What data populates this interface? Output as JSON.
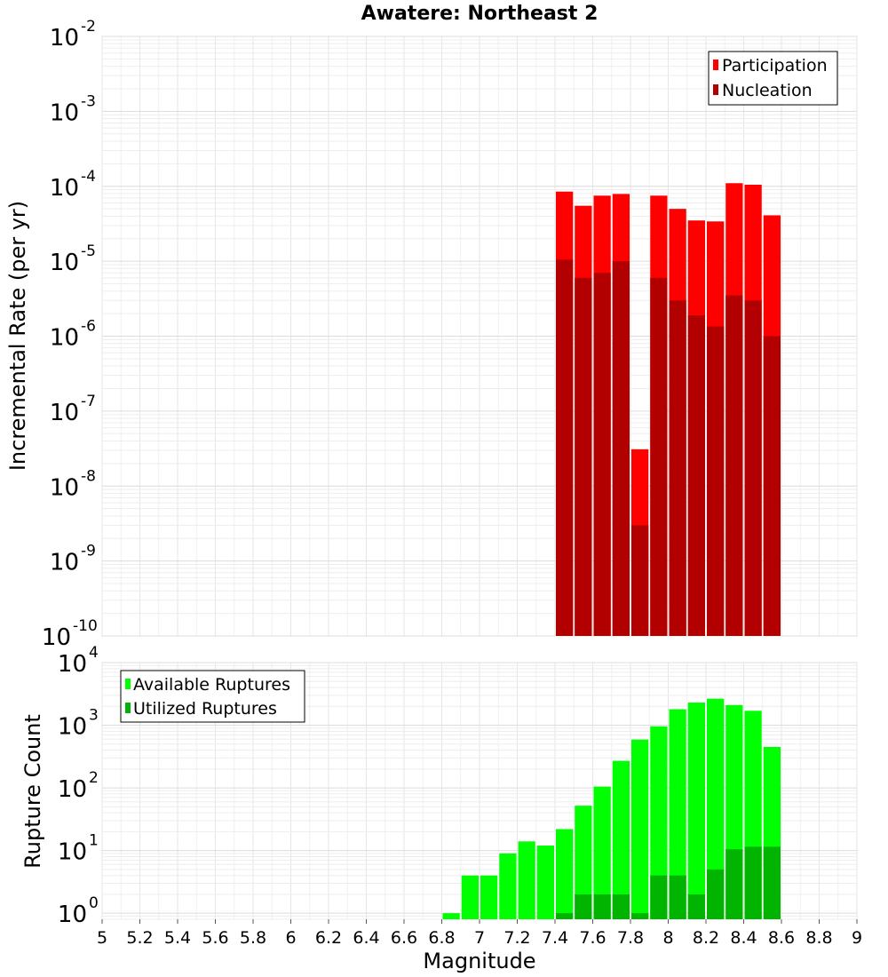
{
  "chart_data": [
    {
      "type": "bar",
      "title": "Awatere: Northeast 2",
      "xlabel": "",
      "ylabel": "Incremental Rate (per yr)",
      "yscale": "log",
      "ylim": [
        1e-10,
        0.01
      ],
      "xlim": [
        5,
        9
      ],
      "y_ticks": [
        {
          "base": "10",
          "exp": "-10"
        },
        {
          "base": "10",
          "exp": "-9"
        },
        {
          "base": "10",
          "exp": "-8"
        },
        {
          "base": "10",
          "exp": "-7"
        },
        {
          "base": "10",
          "exp": "-6"
        },
        {
          "base": "10",
          "exp": "-5"
        },
        {
          "base": "10",
          "exp": "-4"
        },
        {
          "base": "10",
          "exp": "-3"
        },
        {
          "base": "10",
          "exp": "-2"
        }
      ],
      "legend_position": "top-right",
      "x": [
        7.45,
        7.55,
        7.65,
        7.75,
        7.85,
        7.95,
        8.05,
        8.15,
        8.25,
        8.35,
        8.45,
        8.55
      ],
      "series": [
        {
          "name": "Participation",
          "color": "#ff0000",
          "values": [
            8.5e-05,
            5.5e-05,
            7.5e-05,
            7.9e-05,
            3.1e-08,
            7.5e-05,
            5e-05,
            3.5e-05,
            3.4e-05,
            0.00011,
            0.000105,
            4.1e-05
          ]
        },
        {
          "name": "Nucleation",
          "color": "#b20000",
          "values": [
            1.05e-05,
            6e-06,
            7e-06,
            1e-05,
            3e-09,
            6e-06,
            3e-06,
            1.9e-06,
            1.35e-06,
            3.5e-06,
            3e-06,
            1e-06
          ]
        }
      ]
    },
    {
      "type": "bar",
      "title": "",
      "xlabel": "Magnitude",
      "ylabel": "Rupture Count",
      "yscale": "log",
      "ylim": [
        0.8,
        10000
      ],
      "xlim": [
        5,
        9
      ],
      "y_ticks": [
        {
          "value": 1,
          "base": "10",
          "exp": "0"
        },
        {
          "value": 10,
          "base": "10",
          "exp": "1"
        },
        {
          "value": 100,
          "base": "10",
          "exp": "2"
        },
        {
          "value": 1000,
          "base": "10",
          "exp": "3"
        },
        {
          "value": 10000,
          "base": "10",
          "exp": "4"
        }
      ],
      "x_ticks": [
        "5",
        "5.2",
        "5.4",
        "5.6",
        "5.8",
        "6",
        "6.2",
        "6.4",
        "6.6",
        "6.8",
        "7",
        "7.2",
        "7.4",
        "7.6",
        "7.8",
        "8",
        "8.2",
        "8.4",
        "8.6",
        "8.8",
        "9"
      ],
      "legend_position": "top-left",
      "series": [
        {
          "name": "Available Ruptures",
          "color": "#00ff00",
          "x": [
            6.85,
            6.95,
            7.05,
            7.15,
            7.25,
            7.35,
            7.45,
            7.55,
            7.65,
            7.75,
            7.85,
            7.95,
            8.05,
            8.15,
            8.25,
            8.35,
            8.45,
            8.55
          ],
          "values": [
            1,
            4,
            4,
            9,
            14,
            12,
            22,
            52,
            105,
            270,
            590,
            960,
            1800,
            2300,
            2650,
            2100,
            1700,
            450
          ]
        },
        {
          "name": "Utilized Ruptures",
          "color": "#00b400",
          "x": [
            7.45,
            7.55,
            7.65,
            7.75,
            7.85,
            7.95,
            8.05,
            8.15,
            8.25,
            8.35,
            8.45,
            8.55
          ],
          "values": [
            1,
            2,
            2,
            2,
            1,
            4,
            4,
            2,
            5,
            10.5,
            11.5,
            11.5
          ]
        }
      ]
    }
  ]
}
